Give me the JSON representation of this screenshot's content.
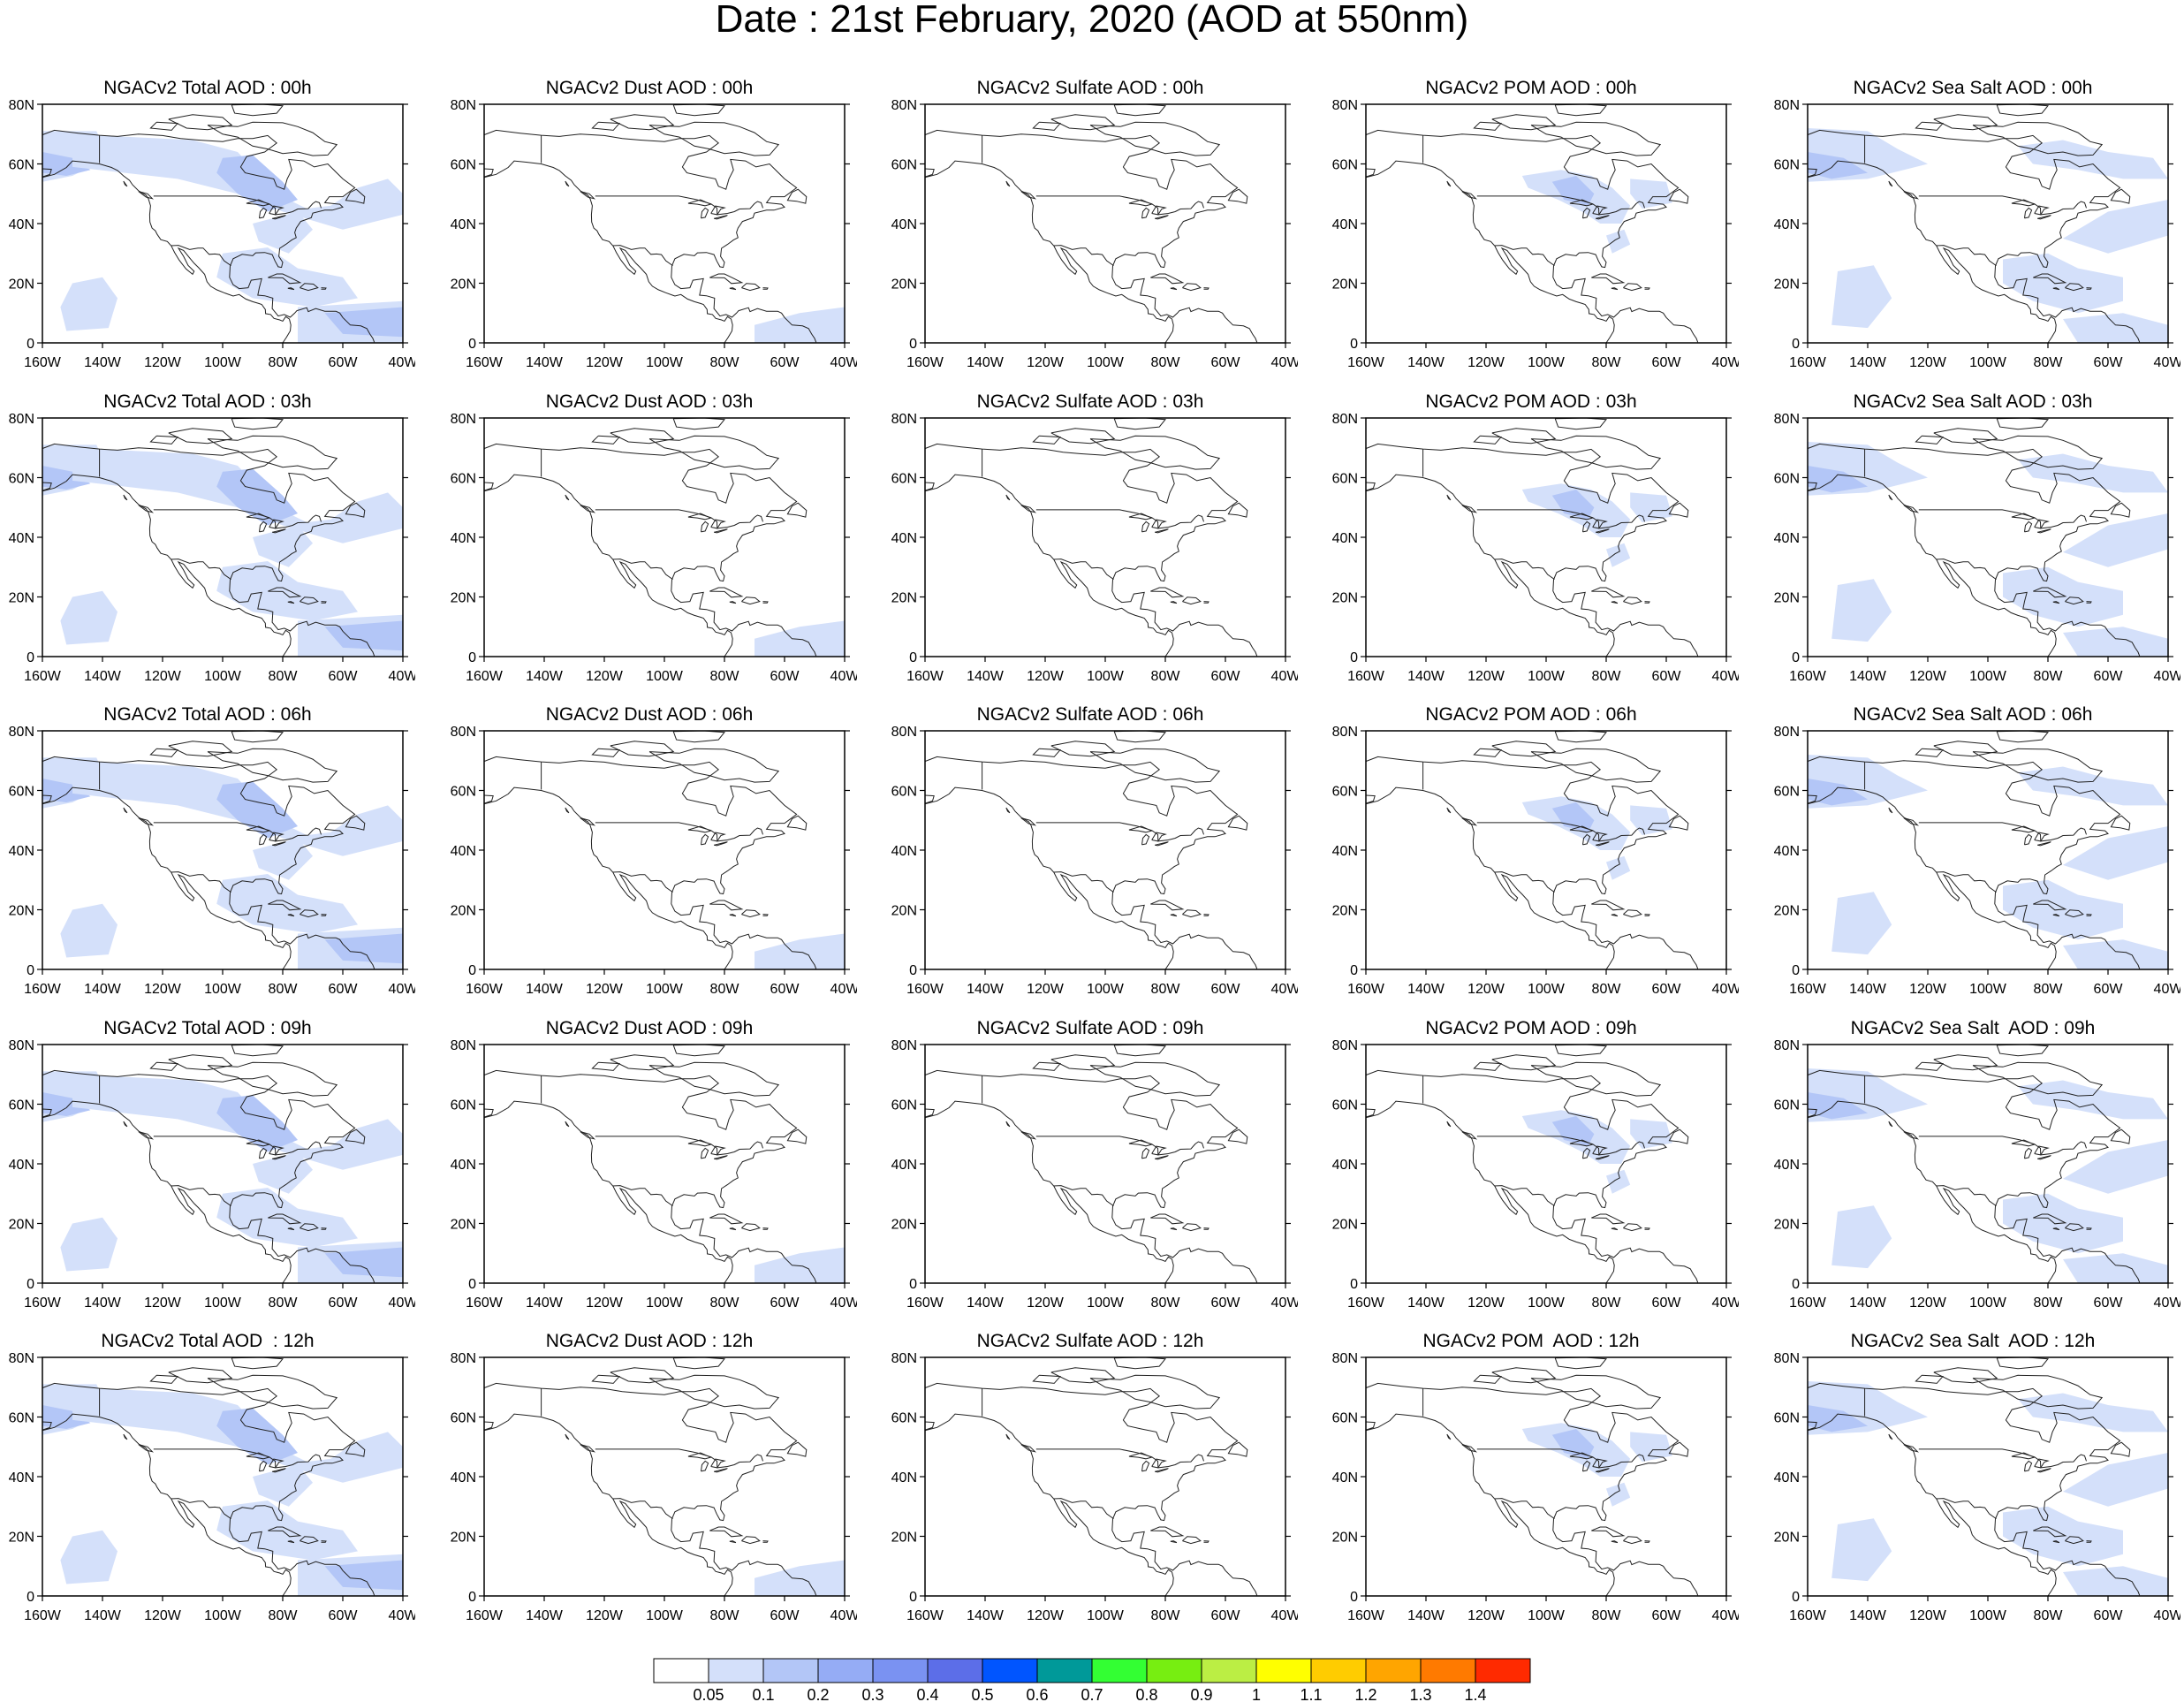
{
  "title": "Date : 21st February, 2020 (AOD at 550nm)",
  "lat_labels": [
    "80N",
    "60N",
    "40N",
    "20N",
    "0"
  ],
  "lon_labels": [
    "160W",
    "140W",
    "120W",
    "100W",
    "80W",
    "60W",
    "40W"
  ],
  "rows": [
    [
      "NGACv2 Total AOD : 00h",
      "NGACv2 Dust AOD : 00h",
      "NGACv2 Sulfate AOD : 00h",
      "NGACv2 POM AOD : 00h",
      "NGACv2 Sea Salt AOD : 00h"
    ],
    [
      "NGACv2 Total AOD : 03h",
      "NGACv2 Dust AOD : 03h",
      "NGACv2 Sulfate AOD : 03h",
      "NGACv2 POM AOD : 03h",
      "NGACv2 Sea Salt AOD : 03h"
    ],
    [
      "NGACv2 Total AOD : 06h",
      "NGACv2 Dust AOD : 06h",
      "NGACv2 Sulfate AOD : 06h",
      "NGACv2 POM AOD : 06h",
      "NGACv2 Sea Salt AOD : 06h"
    ],
    [
      "NGACv2 Total AOD : 09h",
      "NGACv2 Dust AOD : 09h",
      "NGACv2 Sulfate AOD : 09h",
      "NGACv2 POM AOD : 09h",
      "NGACv2 Sea Salt  AOD : 09h"
    ],
    [
      "NGACv2 Total AOD  : 12h",
      "NGACv2 Dust AOD : 12h",
      "NGACv2 Sulfate AOD : 12h",
      "NGACv2 POM  AOD : 12h",
      "NGACv2 Sea Salt  AOD : 12h"
    ]
  ],
  "legend": {
    "labels": [
      "0.05",
      "0.1",
      "0.2",
      "0.3",
      "0.4",
      "0.5",
      "0.6",
      "0.7",
      "0.8",
      "0.9",
      "1",
      "1.1",
      "1.2",
      "1.3",
      "1.4"
    ],
    "colors": [
      "#ffffff",
      "#d4e0fa",
      "#b3c6f7",
      "#95acf5",
      "#7a92f2",
      "#5c6ee8",
      "#0055ff",
      "#009999",
      "#33ff33",
      "#77ee11",
      "#bbee44",
      "#ffff00",
      "#ffcc00",
      "#ffa500",
      "#ff7a00",
      "#ff2a00"
    ]
  },
  "field_levels": {
    "total": 2,
    "dust": 1,
    "sulfate": 0,
    "pom": 2,
    "seasalt": 2
  }
}
